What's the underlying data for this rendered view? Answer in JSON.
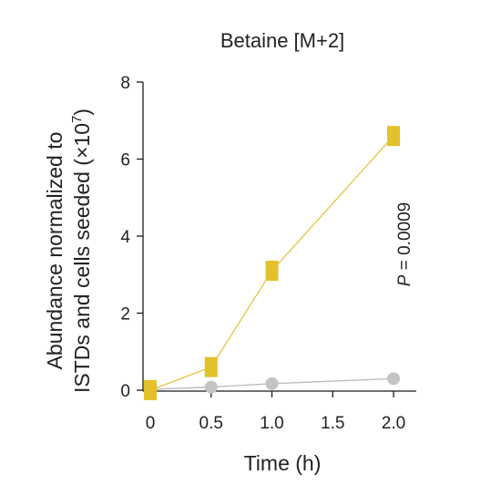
{
  "chart_data": {
    "type": "line",
    "title": "Betaine [M+2]",
    "xlabel": "Time (h)",
    "ylabel_line1": "Abundance normalized to",
    "ylabel_line2": "ISTDs and cells seeded (×10",
    "ylabel_exponent": "7",
    "ylabel_close": ")",
    "xlim": [
      0,
      2.0
    ],
    "ylim": [
      0,
      8
    ],
    "xticks": [
      0,
      0.5,
      1.0,
      1.5,
      2.0
    ],
    "xtick_labels": [
      "0",
      "0.5",
      "1.0",
      "1.5",
      "2.0"
    ],
    "yticks": [
      0,
      2,
      4,
      6,
      8
    ],
    "ytick_labels": [
      "0",
      "2",
      "4",
      "6",
      "8"
    ],
    "grid": false,
    "series": [
      {
        "color": "#e2c12b",
        "line_color": "#e6c84a",
        "marker": "square",
        "x": [
          0,
          0.5,
          1.0,
          2.0
        ],
        "y": [
          0,
          0.6,
          3.1,
          6.6
        ]
      },
      {
        "color": "#c4c4c4",
        "line_color": "#bdbdbd",
        "marker": "circle",
        "x": [
          0,
          0.5,
          1.0,
          2.0
        ],
        "y": [
          0.02,
          0.08,
          0.17,
          0.3
        ]
      }
    ],
    "annotation": {
      "italic": "P",
      "text": " = 0.0009"
    }
  }
}
